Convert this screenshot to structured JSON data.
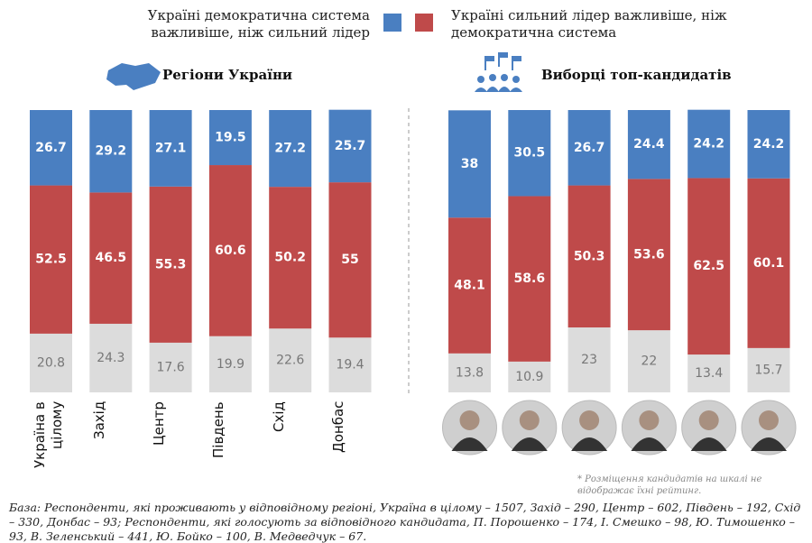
{
  "chart_data": [
    {
      "type": "stacked_bar",
      "title": "Регіони України",
      "categories": [
        "Україна в цілому",
        "Захід",
        "Центр",
        "Південь",
        "Схід",
        "Донбас"
      ],
      "series": [
        {
          "name": "Україні демократична система важливіше, ніж сильний лідер",
          "color": "#4a7fc1",
          "values": [
            26.7,
            29.2,
            27.1,
            19.5,
            27.2,
            25.7
          ]
        },
        {
          "name": "Україні сильний лідер важливіше, ніж демократична система",
          "color": "#bf4a4a",
          "values": [
            52.5,
            46.5,
            55.3,
            60.6,
            50.2,
            55
          ]
        },
        {
          "color": "#dcdcdc",
          "values": [
            20.8,
            24.3,
            17.6,
            19.9,
            22.6,
            19.4
          ]
        }
      ],
      "ylim": [
        0,
        100
      ]
    },
    {
      "type": "stacked_bar",
      "title": "Виборці топ-кандидатів",
      "categories": [
        null,
        null,
        null,
        null,
        null,
        null
      ],
      "series": [
        {
          "color": "#4a7fc1",
          "values": [
            38,
            30.5,
            26.7,
            24.4,
            24.2,
            24.2
          ]
        },
        {
          "color": "#bf4a4a",
          "values": [
            48.1,
            58.6,
            50.3,
            53.6,
            62.5,
            60.1
          ]
        },
        {
          "color": "#dcdcdc",
          "values": [
            13.8,
            10.9,
            23,
            22,
            13.4,
            15.7
          ]
        }
      ],
      "ylim": [
        0,
        100
      ]
    }
  ],
  "footnote": "* Розміщення кандидатів на шкалі не відображає їхні рейтинг.",
  "source": "База: Респонденти, які проживають у відповідному регіоні, Україна в цілому – 1507, Захід – 290, Центр – 602, Південь – 192, Схід – 330, Донбас – 93; Респонденти, які голосують за відповідного кандидата, П. Порошенко – 174, І. Смешко – 98, Ю. Тимошенко – 93, В. Зеленський – 441, Ю. Бойко – 100, В. Медведчук – 67."
}
